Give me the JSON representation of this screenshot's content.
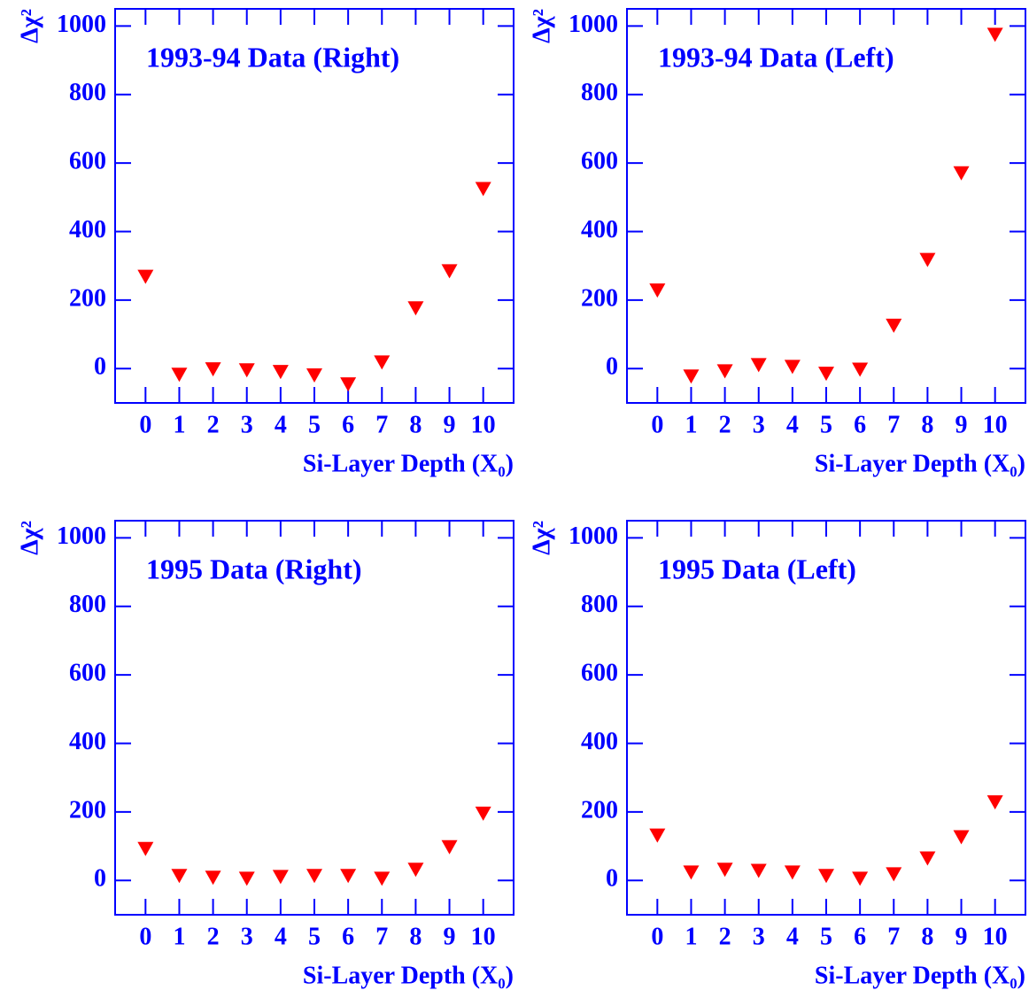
{
  "chart_data": [
    {
      "type": "scatter",
      "title": "1993-94 Data (Right)",
      "x_label": "Si-Layer Depth (X₀)",
      "y_label": "Δχ²",
      "x": [
        0,
        1,
        2,
        3,
        4,
        5,
        6,
        7,
        8,
        9,
        10
      ],
      "values": [
        268,
        -18,
        -2,
        -5,
        -10,
        -20,
        -46,
        18,
        176,
        284,
        524
      ],
      "color": "#ff0000",
      "axis_color": "#0000ff",
      "marker": "triangle-down",
      "xlim": [
        -0.9,
        10.9
      ],
      "xticks": [
        0,
        1,
        2,
        3,
        4,
        5,
        6,
        7,
        8,
        9,
        10
      ],
      "ylim": [
        -100,
        1050
      ],
      "yticks": [
        0,
        200,
        400,
        600,
        800,
        1000
      ]
    },
    {
      "type": "scatter",
      "title": "1993-94 Data (Left)",
      "x_label": "Si-Layer Depth (X₀)",
      "y_label": "Δχ²",
      "x": [
        0,
        1,
        2,
        3,
        4,
        5,
        6,
        7,
        8,
        9,
        10
      ],
      "values": [
        228,
        -23,
        -8,
        10,
        5,
        -15,
        -3,
        125,
        317,
        570,
        974
      ],
      "color": "#ff0000",
      "axis_color": "#0000ff",
      "marker": "triangle-down",
      "xlim": [
        -0.9,
        10.9
      ],
      "xticks": [
        0,
        1,
        2,
        3,
        4,
        5,
        6,
        7,
        8,
        9,
        10
      ],
      "ylim": [
        -100,
        1050
      ],
      "yticks": [
        0,
        200,
        400,
        600,
        800,
        1000
      ]
    },
    {
      "type": "scatter",
      "title": "1995 Data (Right)",
      "x_label": "Si-Layer Depth (X₀)",
      "y_label": "Δχ²",
      "x": [
        0,
        1,
        2,
        3,
        4,
        5,
        6,
        7,
        8,
        9,
        10
      ],
      "values": [
        92,
        13,
        8,
        5,
        10,
        13,
        13,
        5,
        31,
        97,
        195
      ],
      "color": "#ff0000",
      "axis_color": "#0000ff",
      "marker": "triangle-down",
      "xlim": [
        -0.9,
        10.9
      ],
      "xticks": [
        0,
        1,
        2,
        3,
        4,
        5,
        6,
        7,
        8,
        9,
        10
      ],
      "ylim": [
        -100,
        1050
      ],
      "yticks": [
        0,
        200,
        400,
        600,
        800,
        1000
      ]
    },
    {
      "type": "scatter",
      "title": "1995 Data (Left)",
      "x_label": "Si-Layer Depth (X₀)",
      "y_label": "Δχ²",
      "x": [
        0,
        1,
        2,
        3,
        4,
        5,
        6,
        7,
        8,
        9,
        10
      ],
      "values": [
        131,
        23,
        31,
        28,
        23,
        13,
        5,
        18,
        64,
        126,
        228
      ],
      "color": "#ff0000",
      "axis_color": "#0000ff",
      "marker": "triangle-down",
      "xlim": [
        -0.9,
        10.9
      ],
      "xticks": [
        0,
        1,
        2,
        3,
        4,
        5,
        6,
        7,
        8,
        9,
        10
      ],
      "ylim": [
        -100,
        1050
      ],
      "yticks": [
        0,
        200,
        400,
        600,
        800,
        1000
      ]
    }
  ]
}
